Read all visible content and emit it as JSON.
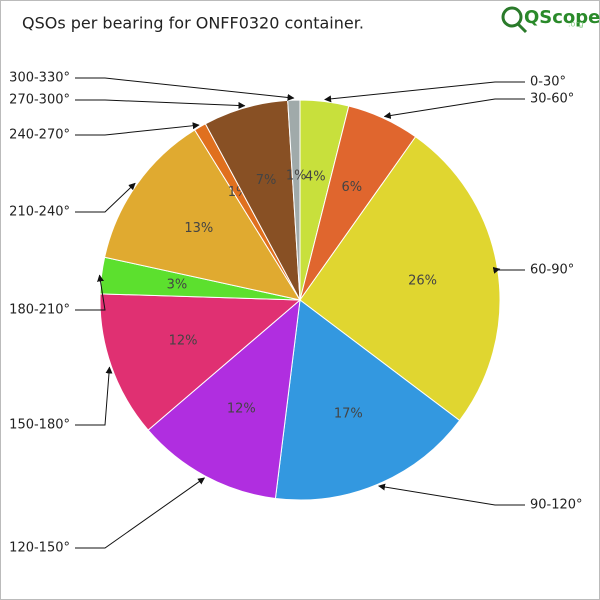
{
  "logo": {
    "name": "QScope",
    "suffix": ".org"
  },
  "chart_data": {
    "type": "pie",
    "title": "QSOs per bearing for ONFF0320 container.",
    "categories": [
      "0-30°",
      "30-60°",
      "60-90°",
      "90-120°",
      "120-150°",
      "150-180°",
      "180-210°",
      "210-240°",
      "240-270°",
      "270-300°",
      "300-330°"
    ],
    "values": [
      4,
      6,
      26,
      17,
      12,
      12,
      3,
      13,
      1,
      7,
      1
    ],
    "value_labels": [
      "4%",
      "6%",
      "26%",
      "17%",
      "12%",
      "12%",
      "3%",
      "13%",
      "1%",
      "7%",
      "1%"
    ],
    "colors": [
      "#c8e03c",
      "#e0662e",
      "#e0d630",
      "#3398e0",
      "#b02ee0",
      "#e03072",
      "#5ce02e",
      "#e0aa30",
      "#e0701e",
      "#885024",
      "#a0aaaa"
    ]
  }
}
